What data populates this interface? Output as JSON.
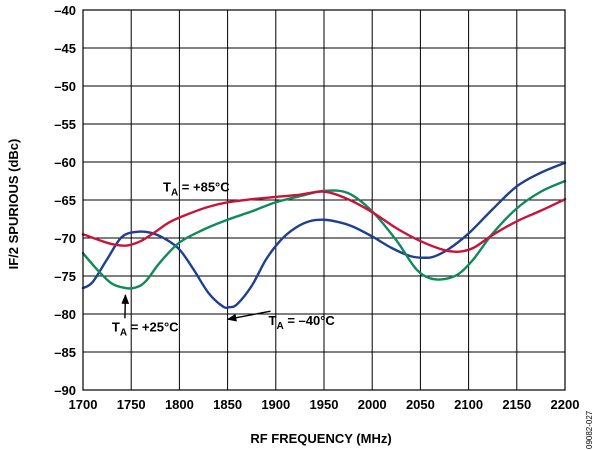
{
  "chart_data": {
    "type": "line",
    "xlabel": "RF FREQUENCY (MHz)",
    "ylabel": "IF/2 SPURIOUS (dBc)",
    "xlim": [
      1700,
      2200
    ],
    "ylim": [
      -90,
      -40
    ],
    "x_ticks": [
      "1700",
      "1750",
      "1800",
      "1850",
      "1900",
      "1950",
      "2000",
      "2050",
      "2100",
      "2150",
      "2200"
    ],
    "y_ticks": [
      "–40",
      "–45",
      "–50",
      "–55",
      "–60",
      "–65",
      "–70",
      "–75",
      "–80",
      "–85",
      "–90"
    ],
    "grid": true,
    "figure_id": "09082-027",
    "series": [
      {
        "name": "TA = –40°C",
        "color": "#1f3f8f",
        "x": [
          1700,
          1710,
          1725,
          1740,
          1755,
          1770,
          1785,
          1800,
          1815,
          1830,
          1845,
          1852,
          1860,
          1875,
          1890,
          1905,
          1920,
          1935,
          1950,
          1965,
          1980,
          2000,
          2020,
          2040,
          2055,
          2065,
          2080,
          2100,
          2125,
          2150,
          2175,
          2200
        ],
        "y": [
          -76.6,
          -75.8,
          -72.8,
          -69.9,
          -69.2,
          -69.3,
          -70.1,
          -71.5,
          -74.2,
          -77.2,
          -79.0,
          -79.1,
          -78.7,
          -76.3,
          -72.8,
          -70.3,
          -68.7,
          -67.8,
          -67.6,
          -67.9,
          -68.5,
          -69.8,
          -71.3,
          -72.4,
          -72.6,
          -72.4,
          -71.4,
          -69.4,
          -66.2,
          -63.2,
          -61.4,
          -60.1
        ]
      },
      {
        "name": "TA = +25°C",
        "color": "#118a5b",
        "x": [
          1700,
          1715,
          1730,
          1745,
          1755,
          1765,
          1780,
          1800,
          1825,
          1850,
          1875,
          1900,
          1925,
          1950,
          1975,
          2000,
          2025,
          2045,
          2060,
          2075,
          2090,
          2105,
          2125,
          2150,
          2175,
          2200
        ],
        "y": [
          -72.0,
          -74.2,
          -76.0,
          -76.6,
          -76.5,
          -75.7,
          -73.2,
          -70.6,
          -68.9,
          -67.6,
          -66.5,
          -65.3,
          -64.5,
          -63.8,
          -64.1,
          -66.5,
          -70.3,
          -74.0,
          -75.3,
          -75.4,
          -74.7,
          -72.8,
          -69.4,
          -66.1,
          -63.9,
          -62.5
        ]
      },
      {
        "name": "TA = +85°C",
        "color": "#c8143c",
        "x": [
          1700,
          1715,
          1730,
          1745,
          1760,
          1775,
          1790,
          1810,
          1830,
          1850,
          1875,
          1900,
          1925,
          1950,
          1975,
          2000,
          2025,
          2050,
          2075,
          2090,
          2105,
          2125,
          2150,
          2175,
          2200
        ],
        "y": [
          -69.5,
          -70.2,
          -70.8,
          -71.0,
          -70.4,
          -69.2,
          -67.9,
          -66.8,
          -65.9,
          -65.3,
          -64.9,
          -64.6,
          -64.3,
          -63.9,
          -64.9,
          -66.6,
          -68.7,
          -70.4,
          -71.6,
          -71.8,
          -71.3,
          -69.6,
          -67.8,
          -66.4,
          -64.9
        ]
      }
    ],
    "annotations": [
      {
        "base": "T",
        "sub": "A",
        "rest": " = +85°C",
        "x": 1700,
        "y": -62.3,
        "ax": null,
        "ay": null
      },
      {
        "base": "T",
        "sub": "A",
        "rest": " = –40°C",
        "x": 1880,
        "y": -79.9,
        "ax": 1850,
        "ay": -80.7
      },
      {
        "base": "T",
        "sub": "A",
        "rest": " = +25°C",
        "x": 1730,
        "y": -80.7,
        "ax": 1744,
        "ay": -77.5
      }
    ]
  }
}
